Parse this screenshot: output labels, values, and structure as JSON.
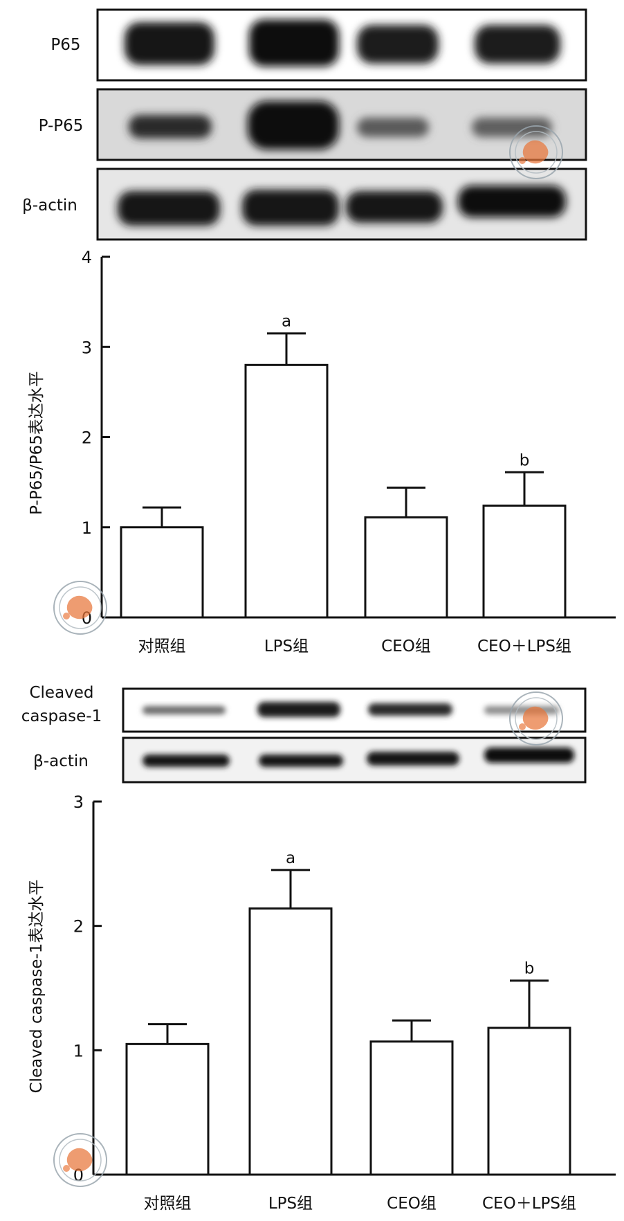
{
  "chart_data": [
    {
      "type": "bar",
      "categories": [
        "对照组",
        "LPS组",
        "CEO组",
        "CEO＋LPS组"
      ],
      "values": [
        1.0,
        2.8,
        1.11,
        1.24
      ],
      "errors": [
        0.22,
        0.35,
        0.33,
        0.37
      ],
      "annotations": [
        "",
        "a",
        "",
        "b"
      ],
      "ylabel": "P-P65/P65表达水平",
      "ylim": [
        0,
        4
      ],
      "yticks": [
        0,
        1,
        2,
        3,
        4
      ],
      "ytick_labels": [
        "0",
        "1",
        "2",
        "3",
        "4"
      ],
      "blot_labels": [
        "P65",
        "P-P65",
        "β-actin"
      ]
    },
    {
      "type": "bar",
      "categories": [
        "对照组",
        "LPS组",
        "CEO组",
        "CEO＋LPS组"
      ],
      "values": [
        1.05,
        2.14,
        1.07,
        1.18
      ],
      "errors": [
        0.16,
        0.31,
        0.17,
        0.38
      ],
      "annotations": [
        "",
        "a",
        "",
        "b"
      ],
      "ylabel": "Cleaved caspase-1表达水平",
      "ylim": [
        0,
        3
      ],
      "yticks": [
        0,
        1,
        2,
        3
      ],
      "ytick_labels": [
        "0",
        "1",
        "2",
        "3"
      ],
      "blot_labels": [
        "Cleaved caspase-1",
        "β-actin"
      ]
    }
  ],
  "watermark": {
    "logo": "chinese-medical-association-seal",
    "color": "#e8763a"
  }
}
